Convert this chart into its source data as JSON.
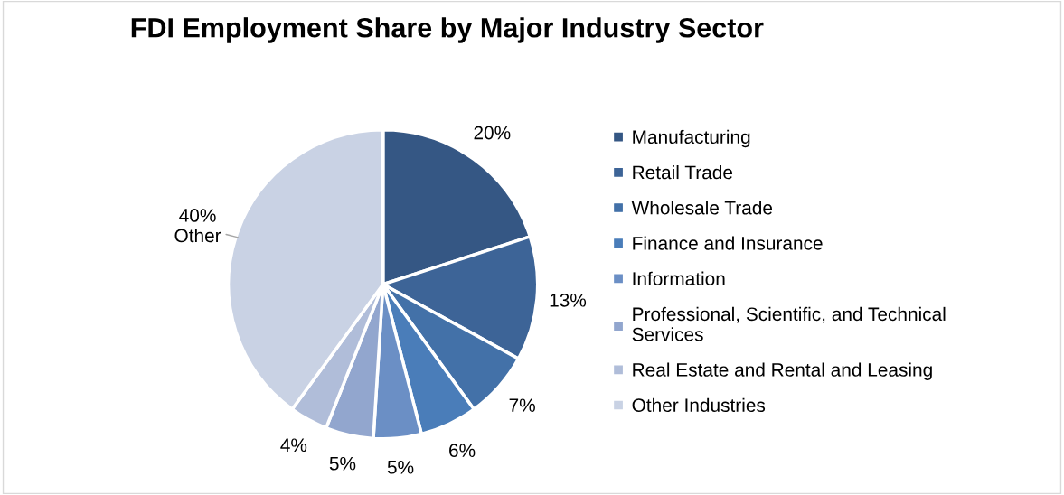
{
  "chart_data": {
    "type": "pie",
    "title": "FDI Employment Share by Major Industry Sector",
    "categories": [
      "Manufacturing",
      "Retail Trade",
      "Wholesale Trade",
      "Finance and Insurance",
      "Information",
      "Professional, Scientific, and Technical\nServices",
      "Real Estate and Rental and Leasing",
      "Other Industries"
    ],
    "values": [
      20,
      13,
      7,
      6,
      5,
      5,
      4,
      40
    ],
    "colors": [
      "#355784",
      "#3d6497",
      "#4371a8",
      "#4a7db9",
      "#6b8fc5",
      "#92a6ce",
      "#b0bdd9",
      "#c9d2e4"
    ],
    "value_labels": [
      "20%",
      "13%",
      "7%",
      "6%",
      "5%",
      "5%",
      "4%",
      "40%\nOther"
    ],
    "legend": "right"
  }
}
